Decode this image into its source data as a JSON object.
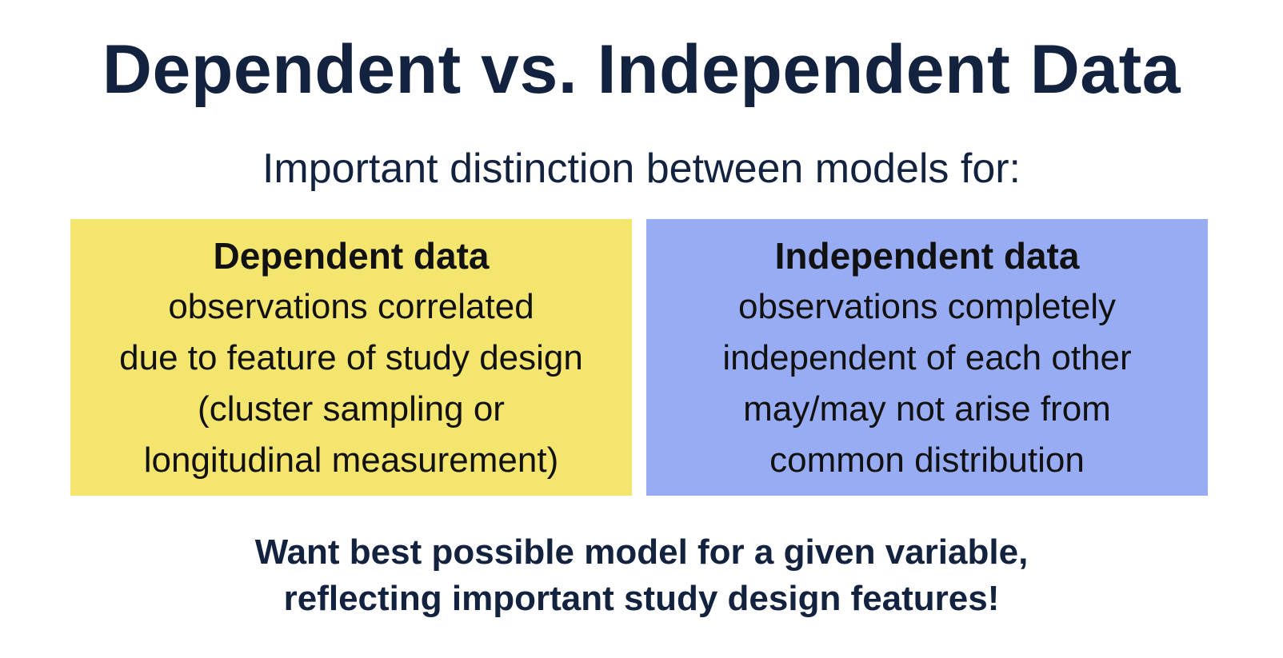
{
  "slide": {
    "title": "Dependent vs. Independent Data",
    "subtitle": "Important distinction between models for:",
    "left_box": {
      "heading": "Dependent data",
      "lines": [
        "observations correlated",
        "due to feature of study design",
        "(cluster sampling or",
        "longitudinal measurement)"
      ],
      "color": "#f3e56e"
    },
    "right_box": {
      "heading": "Independent data",
      "lines": [
        "observations completely",
        "independent of each other",
        "may/may not arise from",
        "common distribution"
      ],
      "color": "#98acf3"
    },
    "footer": {
      "lines": [
        "Want best possible model for a given variable,",
        "reflecting important study design features!"
      ]
    },
    "text_color": "#13233f"
  }
}
